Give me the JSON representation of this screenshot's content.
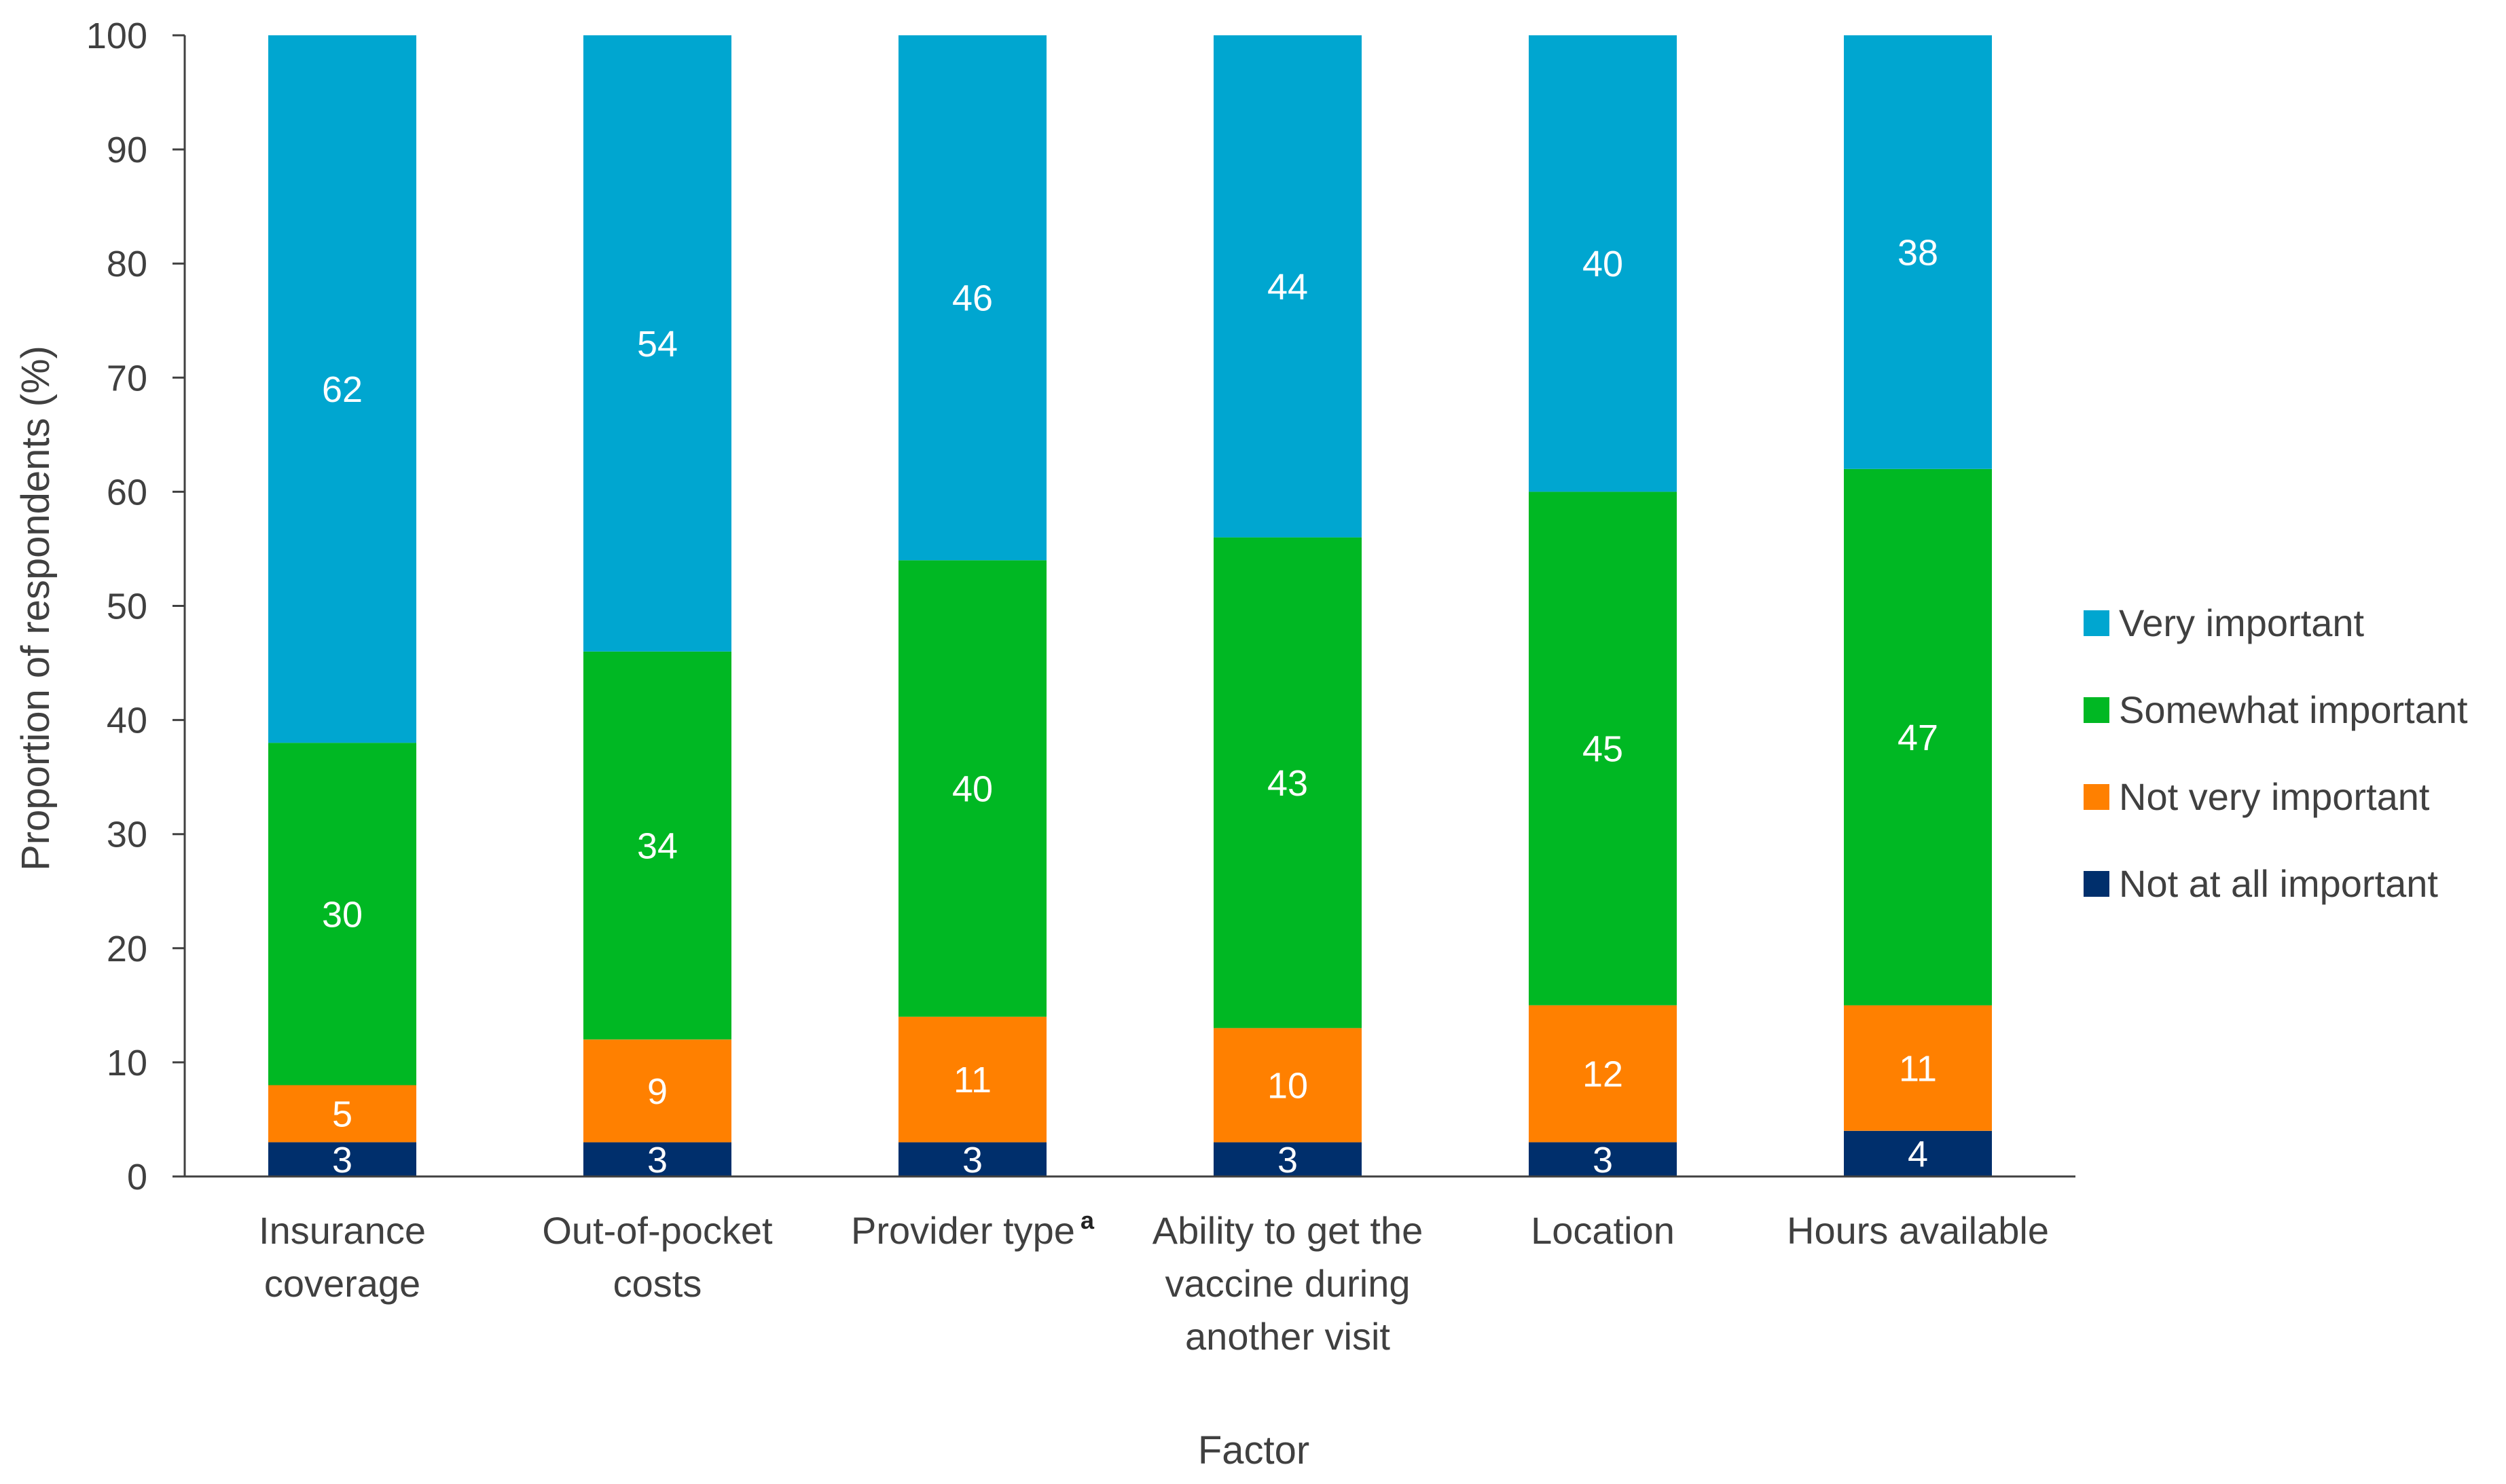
{
  "chart_data": {
    "type": "bar",
    "stacked": true,
    "title": "",
    "xlabel": "Factor",
    "ylabel": "Proportion of respondents (%)",
    "ylim": [
      0,
      100
    ],
    "yticks": [
      0,
      10,
      20,
      30,
      40,
      50,
      60,
      70,
      80,
      90,
      100
    ],
    "grid": false,
    "legend_position": "right",
    "categories": [
      [
        "Insurance",
        "coverage"
      ],
      [
        "Out-of-pocket",
        "costs"
      ],
      [
        "Provider type"
      ],
      [
        "Ability to get the",
        "vaccine during",
        "another visit"
      ],
      [
        "Location"
      ],
      [
        "Hours available"
      ]
    ],
    "category_superscripts": [
      "",
      "",
      "a",
      "",
      "",
      ""
    ],
    "series": [
      {
        "name": "Not at all important",
        "color": "#002F6C",
        "values": [
          3,
          3,
          3,
          3,
          3,
          4
        ]
      },
      {
        "name": "Not very important",
        "color": "#FF8000",
        "values": [
          5,
          9,
          11,
          10,
          12,
          11
        ]
      },
      {
        "name": "Somewhat important",
        "color": "#00B823",
        "values": [
          30,
          34,
          40,
          43,
          45,
          47
        ]
      },
      {
        "name": "Very important",
        "color": "#00A6D0",
        "values": [
          62,
          54,
          46,
          44,
          40,
          38
        ]
      }
    ],
    "legend_order": [
      "Very important",
      "Somewhat important",
      "Not very important",
      "Not at all important"
    ],
    "label_colors": {
      "Not at all important": "#ffffff",
      "Not very important": "#ffffff",
      "Somewhat important": "#ffffff",
      "Very important": "#ffffff"
    },
    "axis_color": "#404040",
    "text_color": "#404040"
  }
}
